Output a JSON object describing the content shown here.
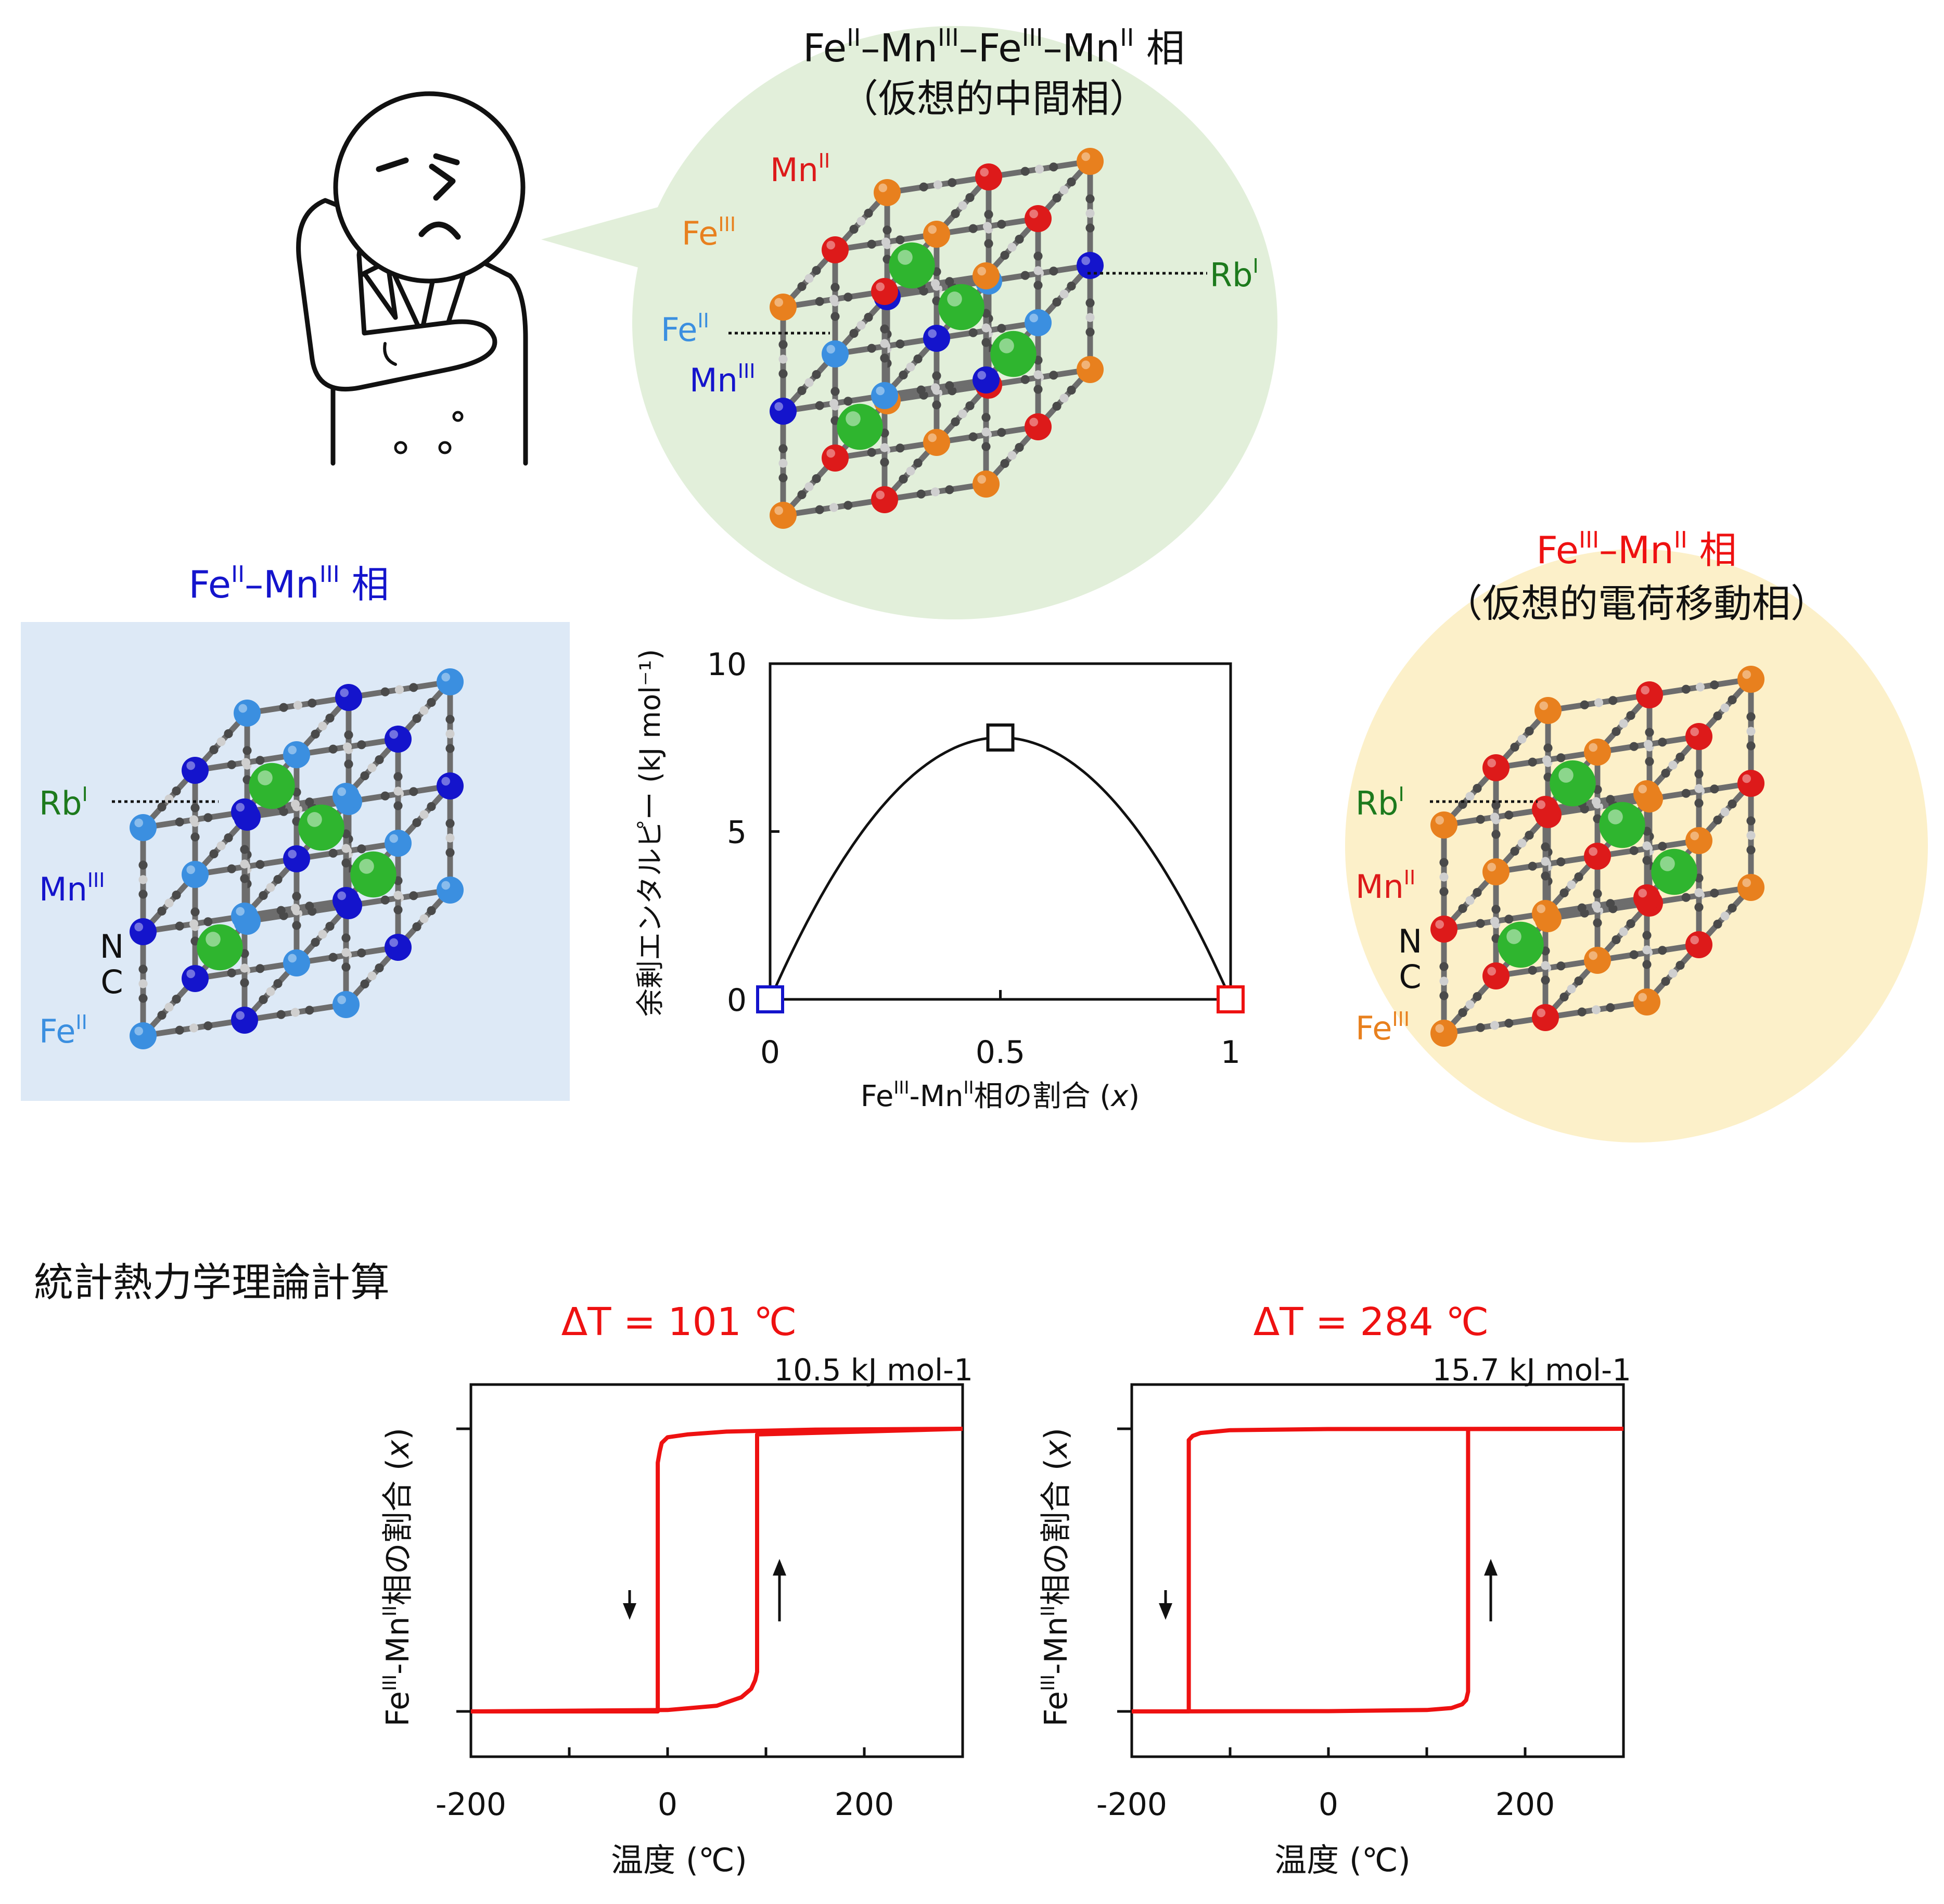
{
  "colors": {
    "fe2": "#3b8fe0",
    "mn3": "#1414cc",
    "fe3": "#e8801e",
    "mn2": "#dd1a1a",
    "rb": "#2fb52f",
    "curve": "#ee1111",
    "blue_title": "#1414cc",
    "red_title": "#ee1111",
    "green_label": "#1d7a1d"
  },
  "icons": [
    "thinking-person-icon"
  ],
  "top_phase": {
    "title_parts": [
      "Fe",
      "II",
      "–Mn",
      "III",
      "–Fe",
      "III",
      "–Mn",
      "II",
      " 相"
    ],
    "subtitle": "（仮想的中間相）",
    "labels": {
      "mn2": [
        "Mn",
        "II"
      ],
      "fe3": [
        "Fe",
        "III"
      ],
      "fe2": [
        "Fe",
        "II"
      ],
      "mn3": [
        "Mn",
        "III"
      ],
      "rb": [
        "Rb",
        "I"
      ]
    }
  },
  "left_phase": {
    "title_parts": [
      "Fe",
      "II",
      "–Mn",
      "III",
      " 相"
    ],
    "labels": {
      "rb": [
        "Rb",
        "I"
      ],
      "mn3": [
        "Mn",
        "III"
      ],
      "n": "N",
      "c": "C",
      "fe2": [
        "Fe",
        "II"
      ]
    }
  },
  "right_phase": {
    "title_parts": [
      "Fe",
      "III",
      "–Mn",
      "II",
      " 相"
    ],
    "subtitle": "（仮想的電荷移動相）",
    "labels": {
      "rb": [
        "Rb",
        "I"
      ],
      "mn2": [
        "Mn",
        "II"
      ],
      "n": "N",
      "c": "C",
      "fe3": [
        "Fe",
        "III"
      ]
    }
  },
  "section_title": "統計熱力学理論計算",
  "chart_data": [
    {
      "type": "line",
      "ylabel": "余剰エンタルピー (kJ mol⁻¹)",
      "xlabel_parts": [
        "Fe",
        "III",
        "-Mn",
        "II",
        "相の割合 (",
        "x",
        ")"
      ],
      "xlim": [
        0,
        1
      ],
      "ylim": [
        0,
        10
      ],
      "x_ticks": [
        "0",
        "0.5",
        "1"
      ],
      "y_ticks": [
        "0",
        "5",
        "10"
      ],
      "series": [
        {
          "x": [
            0,
            0.1,
            0.2,
            0.3,
            0.4,
            0.5,
            0.6,
            0.7,
            0.8,
            0.9,
            1
          ],
          "y": [
            0,
            2.8,
            5.0,
            6.6,
            7.5,
            7.8,
            7.5,
            6.6,
            5.0,
            2.8,
            0
          ]
        }
      ],
      "markers": [
        {
          "x": 0,
          "y": 0,
          "color": "#1414cc"
        },
        {
          "x": 0.5,
          "y": 7.8,
          "color": "#111111"
        },
        {
          "x": 1,
          "y": 0,
          "color": "#ee1111"
        }
      ]
    },
    {
      "type": "line",
      "title": "ΔT = 101 ℃",
      "annotation": "10.5 kJ mol-1",
      "xlabel": "温度 (℃)",
      "ylabel_parts": [
        "Fe",
        "III",
        "-Mn",
        "II",
        "相の割合 (",
        "x",
        ")"
      ],
      "xlim": [
        -200,
        300
      ],
      "ylim": [
        0,
        1
      ],
      "x_ticks": [
        "-200",
        "0",
        "200"
      ],
      "cooling_transition": -10,
      "heating_transition": 91,
      "series": [
        {
          "name": "cooling",
          "x": [
            300,
            150,
            60,
            20,
            0,
            -6,
            -8,
            -10,
            -10,
            -200
          ],
          "y": [
            1,
            0.997,
            0.99,
            0.98,
            0.97,
            0.95,
            0.92,
            0.88,
            0,
            0
          ]
        },
        {
          "name": "heating",
          "x": [
            -200,
            0,
            50,
            75,
            85,
            89,
            91,
            91,
            300
          ],
          "y": [
            0,
            0.005,
            0.02,
            0.05,
            0.08,
            0.11,
            0.14,
            0.98,
            1
          ]
        }
      ]
    },
    {
      "type": "line",
      "title": "ΔT = 284 ℃",
      "annotation": "15.7 kJ mol-1",
      "xlabel": "温度 (℃)",
      "ylabel_parts": [
        "Fe",
        "III",
        "-Mn",
        "II",
        "相の割合 (",
        "x",
        ")"
      ],
      "xlim": [
        -200,
        300
      ],
      "ylim": [
        0,
        1
      ],
      "x_ticks": [
        "-200",
        "0",
        "200"
      ],
      "cooling_transition": -142,
      "heating_transition": 142,
      "series": [
        {
          "name": "cooling",
          "x": [
            300,
            0,
            -100,
            -130,
            -138,
            -142,
            -142,
            -200
          ],
          "y": [
            1,
            0.999,
            0.995,
            0.985,
            0.975,
            0.96,
            0,
            0
          ]
        },
        {
          "name": "heating",
          "x": [
            -200,
            0,
            100,
            125,
            136,
            140,
            142,
            142,
            300
          ],
          "y": [
            0,
            0.001,
            0.005,
            0.012,
            0.025,
            0.04,
            0.07,
            0.999,
            1
          ]
        }
      ]
    }
  ]
}
